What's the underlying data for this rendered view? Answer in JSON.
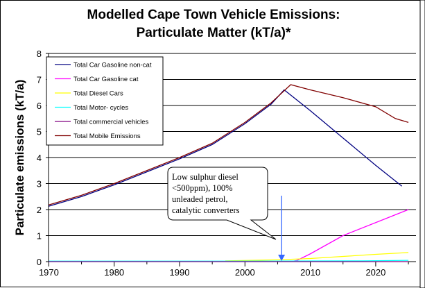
{
  "chart_data": {
    "type": "line",
    "title": "Modelled Cape Town Vehicle Emissions:",
    "subtitle": "Particulate Matter (kT/a)*",
    "xlabel": "",
    "ylabel": "Particulate emissions (kT/a)",
    "xlim": [
      1970,
      2026
    ],
    "ylim": [
      0,
      8
    ],
    "x_ticks": [
      "1970",
      "1980",
      "1990",
      "2000",
      "2010",
      "2020"
    ],
    "y_ticks": [
      "0",
      "1",
      "2",
      "3",
      "4",
      "5",
      "6",
      "7",
      "8"
    ],
    "grid": true,
    "legend_position": "top-left",
    "series": [
      {
        "name": "Total Car Gasoline non-cat",
        "color": "#000080",
        "x": [
          1970,
          1975,
          1980,
          1985,
          1990,
          1995,
          2000,
          2004,
          2006,
          2010,
          2015,
          2020,
          2024
        ],
        "y": [
          2.13,
          2.5,
          2.95,
          3.45,
          3.95,
          4.5,
          5.3,
          6.05,
          6.6,
          5.8,
          4.75,
          3.7,
          2.9
        ]
      },
      {
        "name": "Total Car Gasoline cat",
        "color": "#ff00ff",
        "x": [
          2007,
          2008,
          2010,
          2015,
          2020,
          2023,
          2025
        ],
        "y": [
          0,
          0.05,
          0.3,
          1.0,
          1.5,
          1.8,
          2.0
        ]
      },
      {
        "name": "Total Diesel Cars",
        "color": "#ffff00",
        "x": [
          1997,
          2005,
          2010,
          2015,
          2020,
          2025
        ],
        "y": [
          0.03,
          0.07,
          0.12,
          0.2,
          0.28,
          0.35
        ]
      },
      {
        "name": "Total  Motor- cycles",
        "color": "#00ffff",
        "x": [
          1970,
          2000,
          2018,
          2025
        ],
        "y": [
          0.02,
          0.02,
          0.03,
          0.05
        ]
      },
      {
        "name": "Total commercial vehicles",
        "color": "#800080",
        "x": [
          1970,
          2025
        ],
        "y": [
          0.0,
          0.0
        ]
      },
      {
        "name": "Total Mobile Emissions",
        "color": "#800000",
        "x": [
          1970,
          1975,
          1980,
          1985,
          1990,
          1995,
          2000,
          2004,
          2007,
          2010,
          2015,
          2020,
          2023,
          2025
        ],
        "y": [
          2.18,
          2.55,
          3.0,
          3.5,
          4.0,
          4.55,
          5.35,
          6.1,
          6.8,
          6.6,
          6.3,
          5.95,
          5.5,
          5.35
        ]
      }
    ],
    "annotation": {
      "lines": [
        "Low sulphur diesel",
        "<500ppm), 100%",
        "unleaded petrol,",
        "catalytic converters"
      ],
      "arrow_x": 2005.6,
      "arrow_color": "#3366ff"
    }
  }
}
